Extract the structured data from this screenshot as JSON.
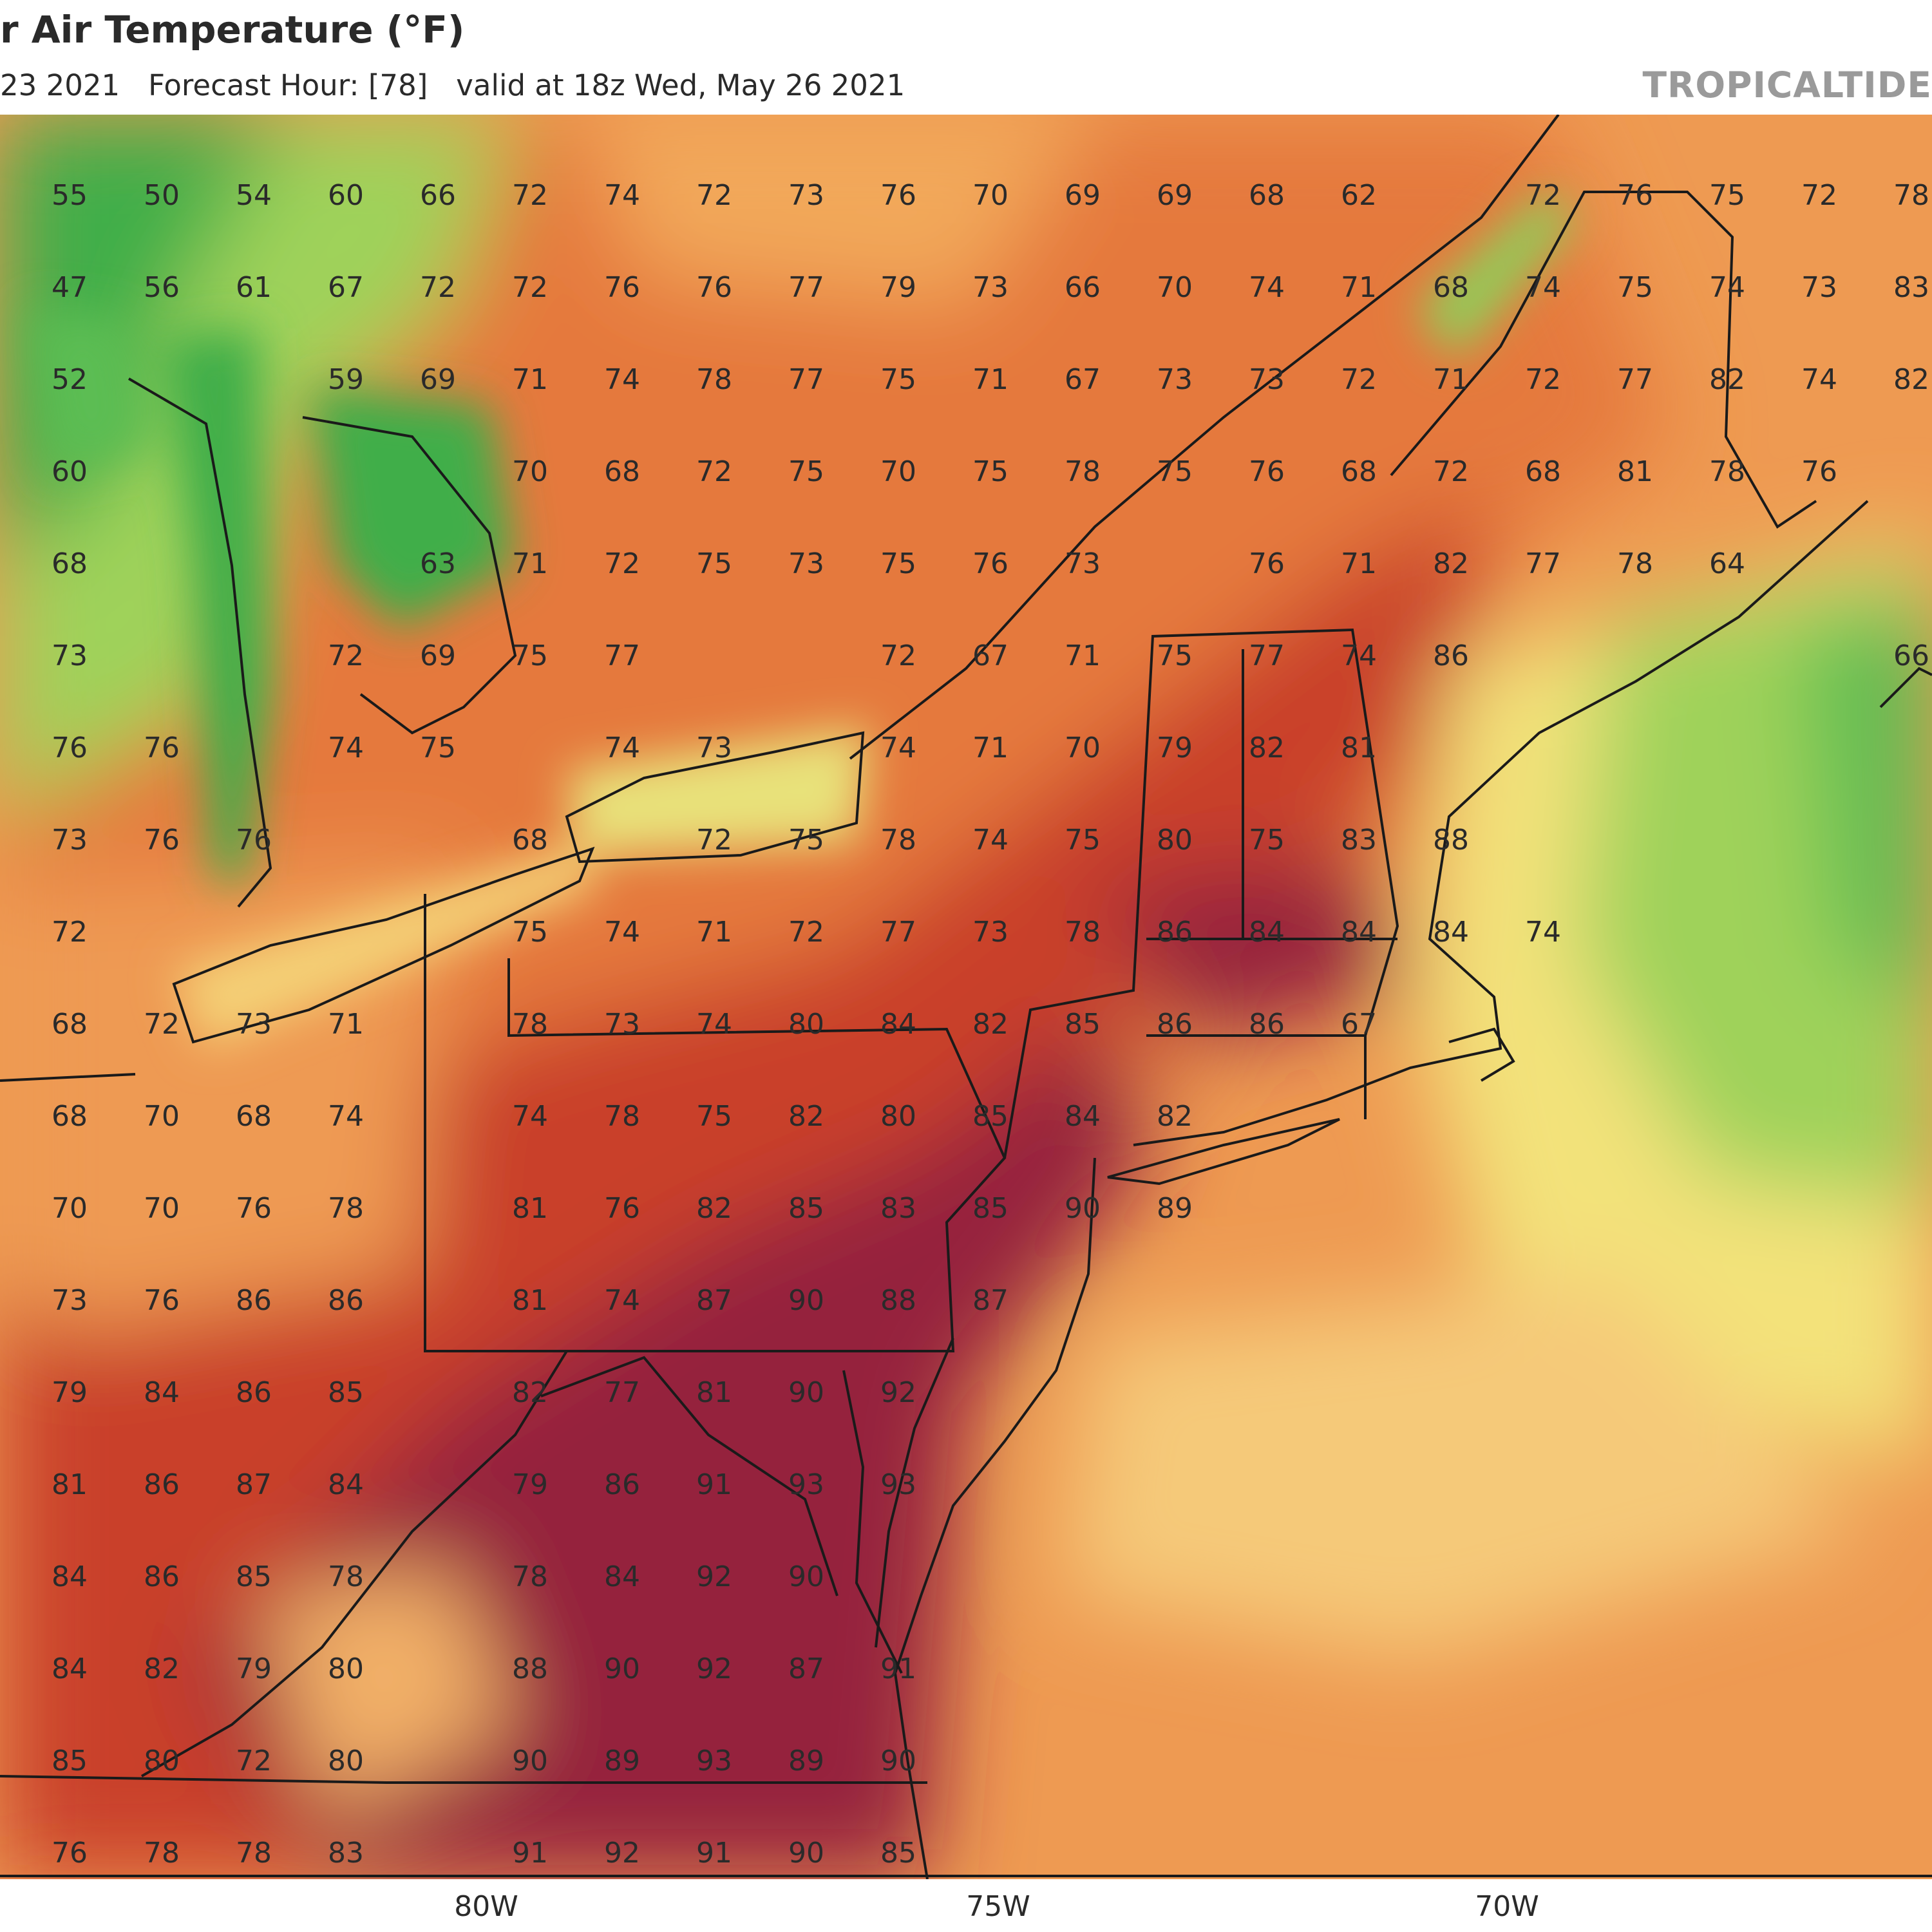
{
  "header": {
    "title": "r Air Temperature (°F)",
    "run_date": "23 2021",
    "forecast_hour": "Forecast Hour: [78]",
    "valid_time": "valid at 18z Wed, May 26 2021",
    "brand": "TROPICALTIDE"
  },
  "map": {
    "units": "°F",
    "longitude_labels": [
      "80W",
      "75W",
      "70W"
    ],
    "colors": {
      "cold_green": "#3fae4a",
      "light_green": "#9fd25a",
      "pale_yellow": "#f3e27a",
      "orange_light": "#f2a85a",
      "orange": "#e98a45",
      "red_orange": "#dc5a2c",
      "red": "#c0392b",
      "dark_red": "#93223a",
      "outline": "#1a1a1a"
    },
    "temperature_grid": [
      [
        "55",
        "50",
        "54",
        "60",
        "66",
        "72",
        "74",
        "72",
        "73",
        "76",
        "70",
        "69",
        "69",
        "68",
        "62",
        "",
        "72",
        "76",
        "75",
        "72",
        "78"
      ],
      [
        "47",
        "56",
        "61",
        "67",
        "72",
        "72",
        "76",
        "76",
        "77",
        "79",
        "73",
        "66",
        "70",
        "74",
        "71",
        "68",
        "74",
        "75",
        "74",
        "73",
        "83"
      ],
      [
        "52",
        "",
        "",
        "59",
        "69",
        "71",
        "74",
        "78",
        "77",
        "75",
        "71",
        "67",
        "73",
        "73",
        "72",
        "71",
        "72",
        "77",
        "82",
        "74",
        "82"
      ],
      [
        "60",
        "",
        "",
        "",
        "",
        "70",
        "68",
        "72",
        "75",
        "70",
        "75",
        "78",
        "75",
        "76",
        "68",
        "72",
        "68",
        "81",
        "78",
        "76",
        ""
      ],
      [
        "68",
        "",
        "",
        "",
        "63",
        "71",
        "72",
        "75",
        "73",
        "75",
        "76",
        "73",
        "",
        "76",
        "71",
        "82",
        "77",
        "78",
        "64",
        "",
        ""
      ],
      [
        "73",
        "",
        "",
        "72",
        "69",
        "75",
        "77",
        "",
        "",
        "72",
        "67",
        "71",
        "75",
        "77",
        "74",
        "86",
        "",
        "",
        "",
        "",
        "66"
      ],
      [
        "76",
        "76",
        "",
        "74",
        "75",
        "",
        "74",
        "73",
        "",
        "74",
        "71",
        "70",
        "79",
        "82",
        "81",
        "",
        "",
        "",
        "",
        "",
        ""
      ],
      [
        "73",
        "76",
        "76",
        "",
        "",
        "68",
        "",
        "72",
        "75",
        "78",
        "74",
        "75",
        "80",
        "75",
        "83",
        "88",
        "",
        "",
        "",
        "",
        ""
      ],
      [
        "72",
        "",
        "",
        "",
        "",
        "75",
        "74",
        "71",
        "72",
        "77",
        "73",
        "78",
        "86",
        "84",
        "84",
        "84",
        "74",
        "",
        "",
        "",
        ""
      ],
      [
        "68",
        "72",
        "73",
        "71",
        "",
        "78",
        "73",
        "74",
        "80",
        "84",
        "82",
        "85",
        "86",
        "86",
        "67",
        "",
        "",
        "",
        "",
        "",
        ""
      ],
      [
        "68",
        "70",
        "68",
        "74",
        "",
        "74",
        "78",
        "75",
        "82",
        "80",
        "85",
        "84",
        "82",
        "",
        "",
        "",
        "",
        "",
        "",
        "",
        ""
      ],
      [
        "70",
        "70",
        "76",
        "78",
        "",
        "81",
        "76",
        "82",
        "85",
        "83",
        "85",
        "90",
        "89",
        "",
        "",
        "",
        "",
        "",
        "",
        "",
        ""
      ],
      [
        "73",
        "76",
        "86",
        "86",
        "",
        "81",
        "74",
        "87",
        "90",
        "88",
        "87",
        "",
        "",
        "",
        "",
        "",
        "",
        "",
        "",
        "",
        ""
      ],
      [
        "79",
        "84",
        "86",
        "85",
        "",
        "82",
        "77",
        "81",
        "90",
        "92",
        "",
        "",
        "",
        "",
        "",
        "",
        "",
        "",
        "",
        "",
        ""
      ],
      [
        "81",
        "86",
        "87",
        "84",
        "",
        "79",
        "86",
        "91",
        "93",
        "93",
        "",
        "",
        "",
        "",
        "",
        "",
        "",
        "",
        "",
        "",
        ""
      ],
      [
        "84",
        "86",
        "85",
        "78",
        "",
        "78",
        "84",
        "92",
        "90",
        "",
        "",
        "",
        "",
        "",
        "",
        "",
        "",
        "",
        "",
        "",
        ""
      ],
      [
        "84",
        "82",
        "79",
        "80",
        "",
        "88",
        "90",
        "92",
        "87",
        "91",
        "",
        "",
        "",
        "",
        "",
        "",
        "",
        "",
        "",
        "",
        ""
      ],
      [
        "85",
        "80",
        "72",
        "80",
        "",
        "90",
        "89",
        "93",
        "89",
        "90",
        "",
        "",
        "",
        "",
        "",
        "",
        "",
        "",
        "",
        "",
        ""
      ],
      [
        "76",
        "78",
        "78",
        "83",
        "",
        "91",
        "92",
        "91",
        "90",
        "85",
        "",
        "",
        "",
        "",
        "",
        "",
        "",
        "",
        "",
        "",
        ""
      ]
    ]
  }
}
